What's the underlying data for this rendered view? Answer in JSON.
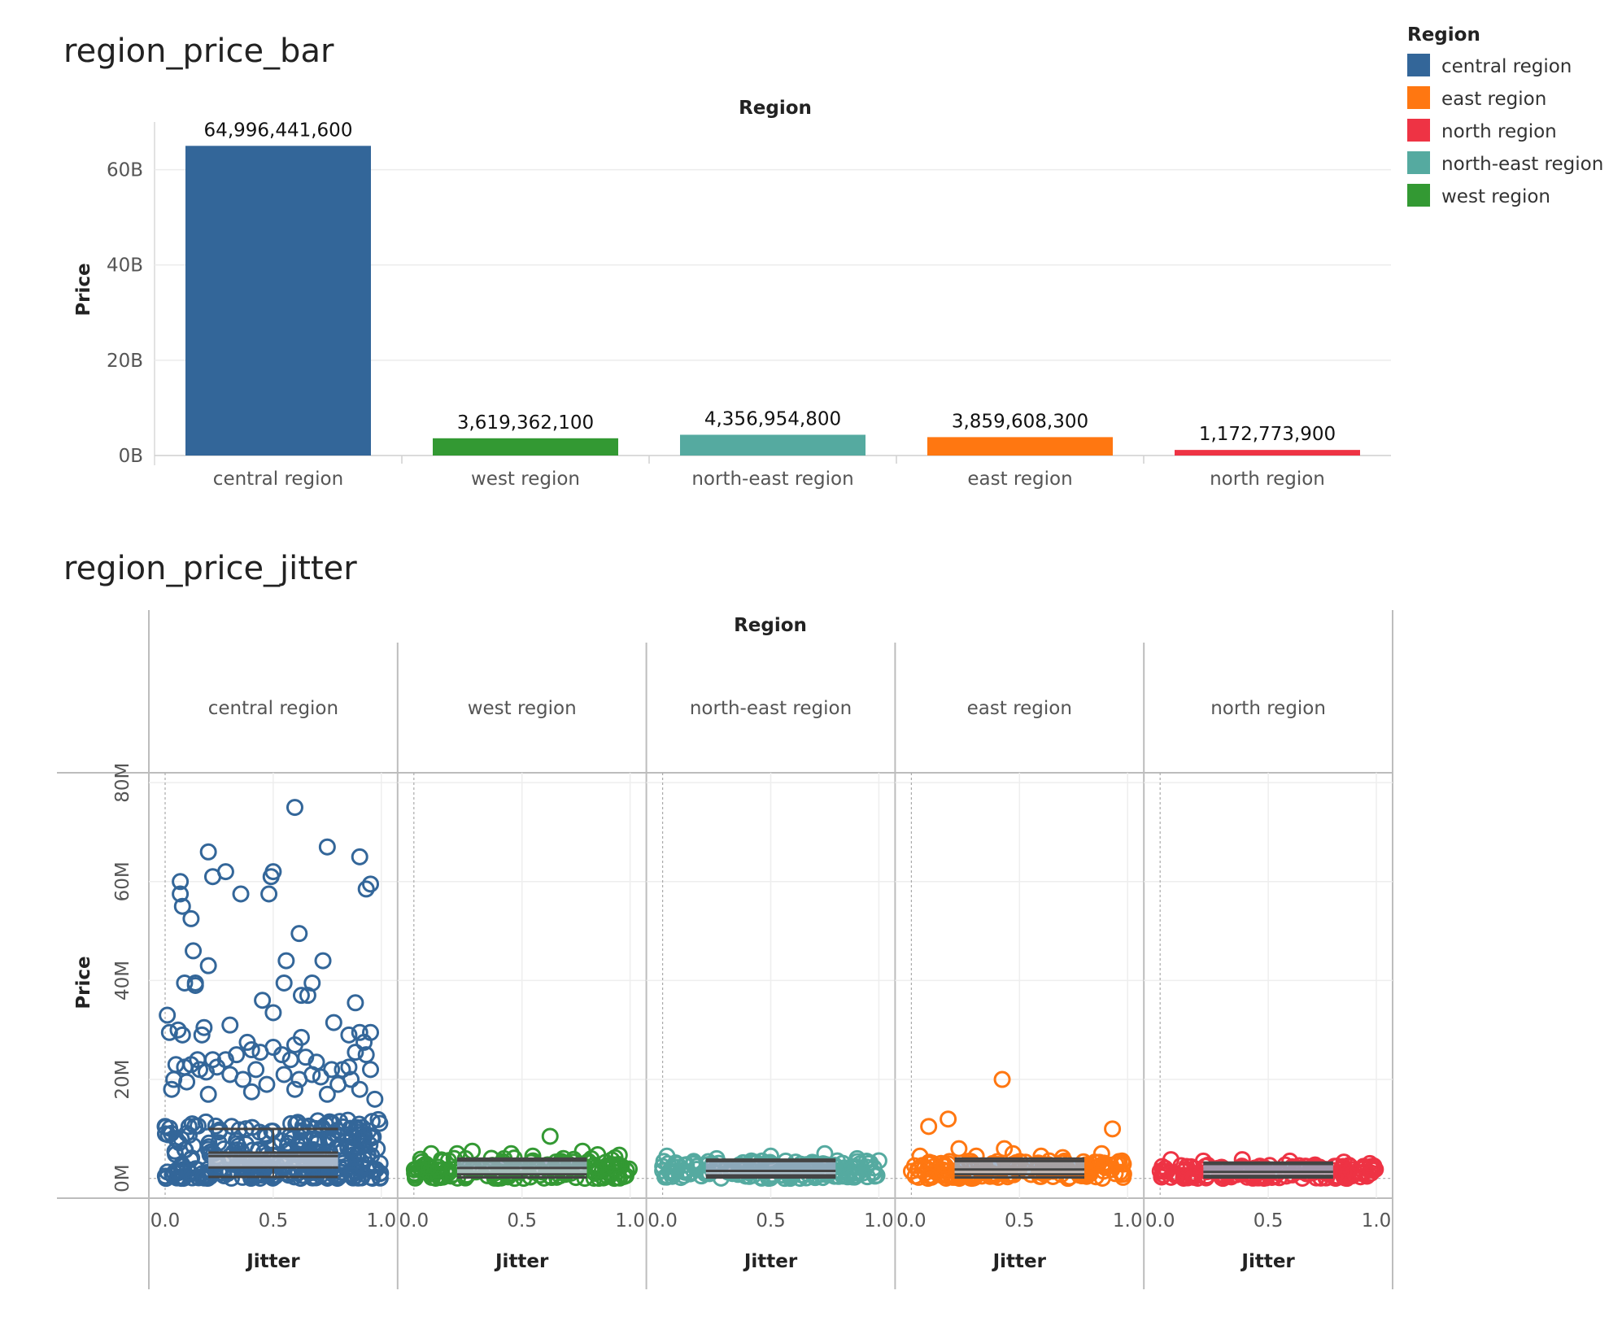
{
  "legend": {
    "title": "Region",
    "items": [
      {
        "label": "central region",
        "color": "#336699"
      },
      {
        "label": "east region",
        "color": "#ff7711"
      },
      {
        "label": "north region",
        "color": "#ee3344"
      },
      {
        "label": "north-east region",
        "color": "#55aaa0"
      },
      {
        "label": "west region",
        "color": "#339933"
      }
    ]
  },
  "chart_data": [
    {
      "type": "bar",
      "title": "region_price_bar",
      "header": "Region",
      "ylabel": "Price",
      "ylim": [
        0,
        70000000000
      ],
      "yticks": [
        0,
        20000000000,
        40000000000,
        60000000000
      ],
      "ytick_labels": [
        "0B",
        "20B",
        "40B",
        "60B"
      ],
      "grid": true,
      "categories": [
        "central region",
        "west region",
        "north-east region",
        "east region",
        "north region"
      ],
      "values": [
        64996441600,
        3619362100,
        4356954800,
        3859608300,
        1172773900
      ],
      "value_labels": [
        "64,996,441,600",
        "3,619,362,100",
        "4,356,954,800",
        "3,859,608,300",
        "1,172,773,900"
      ],
      "colors": [
        "#336699",
        "#339933",
        "#55aaa0",
        "#ff7711",
        "#ee3344"
      ]
    },
    {
      "type": "scatter",
      "subtype": "jitter with box plot",
      "title": "region_price_jitter",
      "header": "Region",
      "ylabel": "Price",
      "xlabel": "Jitter",
      "xlim": [
        0,
        1
      ],
      "xtick_labels": [
        "0.0",
        "0.5",
        "1.0"
      ],
      "ylim": [
        -4000000,
        82000000
      ],
      "yticks": [
        0,
        20000000,
        40000000,
        60000000,
        80000000
      ],
      "ytick_labels": [
        "0M",
        "20M",
        "40M",
        "60M",
        "80M"
      ],
      "grid": true,
      "panels": [
        {
          "name": "central region",
          "color": "#336699",
          "box": {
            "q1": 2200000,
            "median": 4500000,
            "q3": 5200000,
            "whisker_low": 300000,
            "whisker_high": 10000000
          },
          "dense_max": 12000000,
          "outliers": [
            [
              0.6,
              75
            ],
            [
              0.75,
              67
            ],
            [
              0.2,
              66
            ],
            [
              0.9,
              65
            ],
            [
              0.22,
              61
            ],
            [
              0.28,
              62
            ],
            [
              0.5,
              62
            ],
            [
              0.49,
              61
            ],
            [
              0.95,
              59.5
            ],
            [
              0.93,
              58.5
            ],
            [
              0.07,
              60
            ],
            [
              0.07,
              57.5
            ],
            [
              0.08,
              55
            ],
            [
              0.12,
              52.5
            ],
            [
              0.35,
              57.5
            ],
            [
              0.48,
              57.5
            ],
            [
              0.62,
              49.5
            ],
            [
              0.13,
              46
            ],
            [
              0.2,
              43
            ],
            [
              0.56,
              44
            ],
            [
              0.73,
              44
            ],
            [
              0.09,
              39.5
            ],
            [
              0.14,
              39.5
            ],
            [
              0.14,
              39
            ],
            [
              0.55,
              39.5
            ],
            [
              0.68,
              39.5
            ],
            [
              0.66,
              37
            ],
            [
              0.63,
              37
            ],
            [
              0.45,
              36
            ],
            [
              0.88,
              35.5
            ],
            [
              0.78,
              31.5
            ],
            [
              0.01,
              33
            ],
            [
              0.02,
              29.5
            ],
            [
              0.06,
              30
            ],
            [
              0.08,
              29
            ],
            [
              0.17,
              29
            ],
            [
              0.18,
              30.5
            ],
            [
              0.3,
              31
            ],
            [
              0.5,
              33.5
            ],
            [
              0.63,
              28.5
            ],
            [
              0.6,
              27
            ],
            [
              0.85,
              29
            ],
            [
              0.9,
              29.5
            ],
            [
              0.95,
              29.5
            ],
            [
              0.92,
              27.5
            ],
            [
              0.95,
              22
            ],
            [
              0.93,
              25
            ],
            [
              0.88,
              25.5
            ],
            [
              0.85,
              22.5
            ],
            [
              0.82,
              22
            ],
            [
              0.77,
              22
            ],
            [
              0.7,
              23.5
            ],
            [
              0.65,
              24.5
            ],
            [
              0.58,
              24
            ],
            [
              0.54,
              25
            ],
            [
              0.5,
              26.5
            ],
            [
              0.44,
              25.5
            ],
            [
              0.4,
              26
            ],
            [
              0.38,
              27.5
            ],
            [
              0.33,
              25
            ],
            [
              0.28,
              24
            ],
            [
              0.24,
              22.5
            ],
            [
              0.22,
              24
            ],
            [
              0.19,
              21.5
            ],
            [
              0.16,
              22
            ],
            [
              0.12,
              23
            ],
            [
              0.09,
              22.5
            ],
            [
              0.05,
              23
            ],
            [
              0.04,
              20
            ],
            [
              0.1,
              19.5
            ],
            [
              0.15,
              24
            ],
            [
              0.3,
              21
            ],
            [
              0.36,
              20
            ],
            [
              0.42,
              22
            ],
            [
              0.47,
              19
            ],
            [
              0.55,
              21
            ],
            [
              0.62,
              20
            ],
            [
              0.68,
              21
            ],
            [
              0.72,
              20.5
            ],
            [
              0.8,
              19
            ],
            [
              0.86,
              20
            ],
            [
              0.9,
              18
            ],
            [
              0.03,
              18
            ],
            [
              0.2,
              17
            ],
            [
              0.4,
              17.5
            ],
            [
              0.6,
              18
            ],
            [
              0.75,
              17
            ],
            [
              0.97,
              16
            ]
          ]
        },
        {
          "name": "west region",
          "color": "#339933",
          "box": {
            "q1": 800000,
            "median": 2100000,
            "q3": 3600000,
            "whisker_low": 200000,
            "whisker_high": 4000000
          },
          "dense_max": 4200000,
          "outliers": [
            [
              0.63,
              8.5
            ],
            [
              0.08,
              5
            ],
            [
              0.2,
              5
            ],
            [
              0.27,
              5.5
            ],
            [
              0.45,
              5
            ],
            [
              0.55,
              4.5
            ],
            [
              0.78,
              5.5
            ],
            [
              0.85,
              4.8
            ],
            [
              0.95,
              4.7
            ]
          ]
        },
        {
          "name": "north-east region",
          "color": "#55aaa0",
          "box": {
            "q1": 600000,
            "median": 1500000,
            "q3": 3500000,
            "whisker_low": 200000,
            "whisker_high": 3800000
          },
          "dense_max": 3600000,
          "outliers": [
            [
              0.02,
              4.5
            ],
            [
              0.25,
              4
            ],
            [
              0.5,
              4.5
            ],
            [
              0.75,
              5
            ],
            [
              0.9,
              4
            ]
          ]
        },
        {
          "name": "east region",
          "color": "#ff7711",
          "box": {
            "q1": 800000,
            "median": 1800000,
            "q3": 3500000,
            "whisker_low": 200000,
            "whisker_high": 4000000
          },
          "dense_max": 3600000,
          "outliers": [
            [
              0.42,
              20
            ],
            [
              0.08,
              10.5
            ],
            [
              0.17,
              12
            ],
            [
              0.93,
              10
            ],
            [
              0.22,
              6
            ],
            [
              0.43,
              6
            ],
            [
              0.47,
              5
            ],
            [
              0.88,
              5
            ],
            [
              0.04,
              4.5
            ],
            [
              0.3,
              4.5
            ],
            [
              0.6,
              4.5
            ],
            [
              0.7,
              4.2
            ]
          ]
        },
        {
          "name": "north region",
          "color": "#ee3344",
          "box": {
            "q1": 500000,
            "median": 1300000,
            "q3": 2900000,
            "whisker_low": 200000,
            "whisker_high": 3200000
          },
          "dense_max": 2800000,
          "outliers": [
            [
              0.05,
              3.8
            ],
            [
              0.2,
              3.5
            ],
            [
              0.38,
              3.8
            ],
            [
              0.6,
              3.5
            ],
            [
              0.85,
              3.3
            ],
            [
              0.97,
              3
            ]
          ]
        }
      ]
    }
  ]
}
